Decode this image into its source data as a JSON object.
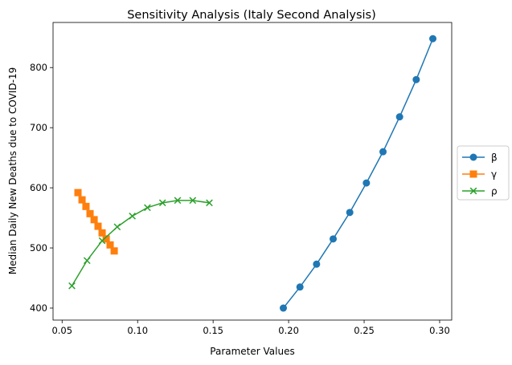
{
  "chart_data": {
    "type": "line",
    "title": "Sensitivity Analysis (Italy Second Analysis)",
    "xlabel": "Parameter Values",
    "ylabel": "Median Daily New Deaths due to COVID-19",
    "xlim": [
      0.044,
      0.308
    ],
    "ylim": [
      380,
      875
    ],
    "xticks": [
      0.05,
      0.1,
      0.15,
      0.2,
      0.25,
      0.3
    ],
    "xtick_labels": [
      "0.05",
      "0.10",
      "0.15",
      "0.20",
      "0.25",
      "0.30"
    ],
    "yticks": [
      400,
      500,
      600,
      700,
      800
    ],
    "ytick_labels": [
      "400",
      "500",
      "600",
      "700",
      "800"
    ],
    "grid": false,
    "legend_position": "center-right outside",
    "series": [
      {
        "name": "β",
        "color": "#1f77b4",
        "marker": "circle",
        "x": [
          0.1965,
          0.2075,
          0.2185,
          0.2295,
          0.2405,
          0.2515,
          0.2625,
          0.2735,
          0.2845,
          0.2955
        ],
        "y": [
          400,
          435,
          473,
          515,
          559,
          608,
          660,
          718,
          780,
          848
        ]
      },
      {
        "name": "γ",
        "color": "#ff7f0e",
        "marker": "square",
        "x": [
          0.0605,
          0.0632,
          0.0658,
          0.0685,
          0.0712,
          0.0738,
          0.0765,
          0.0792,
          0.0818,
          0.0845
        ],
        "y": [
          592,
          580,
          569,
          557,
          547,
          536,
          525,
          515,
          505,
          495
        ]
      },
      {
        "name": "ρ",
        "color": "#2ca02c",
        "marker": "x",
        "x": [
          0.0565,
          0.0665,
          0.0765,
          0.0865,
          0.0965,
          0.1065,
          0.1165,
          0.1265,
          0.1365,
          0.1475
        ],
        "y": [
          437,
          479,
          512,
          535,
          553,
          567,
          575,
          579,
          579,
          575
        ]
      }
    ]
  }
}
